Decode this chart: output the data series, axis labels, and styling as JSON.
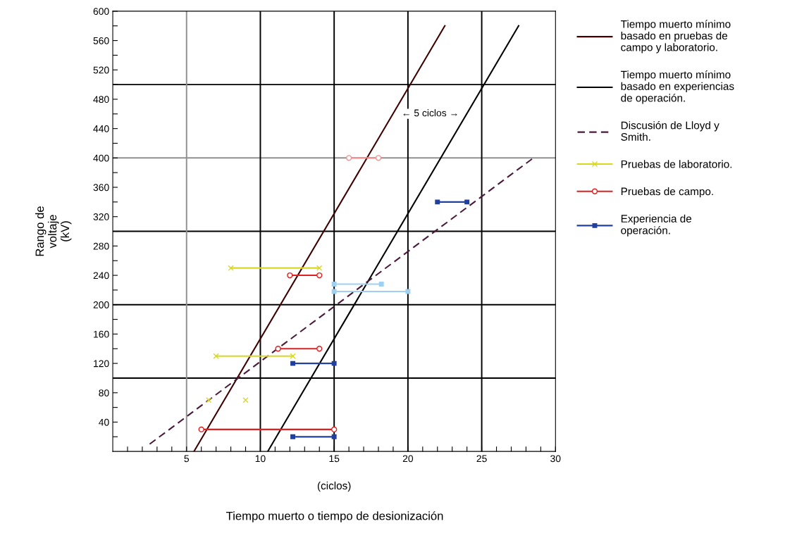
{
  "chart_data": {
    "type": "line",
    "xlabel": "(ciclos)",
    "ylabel": "Rango de\nvoltaje\n(kV)",
    "annotations": [
      "Tiempo muerto o tiempo de desionización",
      "← 5 ciclos →"
    ],
    "xlim": [
      0,
      30
    ],
    "ylim": [
      0,
      600
    ],
    "xticks": [
      {
        "value": 1,
        "label": null
      },
      {
        "value": 2,
        "label": null
      },
      {
        "value": 3,
        "label": null
      },
      {
        "value": 4,
        "label": null
      },
      5,
      {
        "value": 6,
        "label": null
      },
      {
        "value": 7,
        "label": null
      },
      {
        "value": 8,
        "label": null
      },
      {
        "value": 9,
        "label": null
      },
      10,
      {
        "value": 11,
        "label": null
      },
      {
        "value": 12,
        "label": null
      },
      {
        "value": 13,
        "label": null
      },
      {
        "value": 14,
        "label": null
      },
      15,
      {
        "value": 16,
        "label": null
      },
      {
        "value": 17,
        "label": null
      },
      {
        "value": 18,
        "label": null
      },
      {
        "value": 19,
        "label": null
      },
      20,
      {
        "value": 21,
        "label": null
      },
      {
        "value": 22,
        "label": null
      },
      {
        "value": 23,
        "label": null
      },
      {
        "value": 24,
        "label": null
      },
      25,
      {
        "value": 26,
        "label": null
      },
      {
        "value": 27,
        "label": null
      },
      {
        "value": 28,
        "label": null
      },
      {
        "value": 29,
        "label": null
      },
      30
    ],
    "yticks": [
      {
        "value": 20,
        "label": null
      },
      40,
      {
        "value": 60,
        "label": null
      },
      80,
      {
        "value": 100,
        "label": null
      },
      120,
      {
        "value": 140,
        "label": null
      },
      160,
      {
        "value": 180,
        "label": null
      },
      200,
      {
        "value": 220,
        "label": null
      },
      240,
      {
        "value": 260,
        "label": null
      },
      280,
      {
        "value": 300,
        "label": null
      },
      320,
      {
        "value": 340,
        "label": null
      },
      360,
      {
        "value": 380,
        "label": null
      },
      400,
      {
        "value": 420,
        "label": null
      },
      440,
      {
        "value": 460,
        "label": null
      },
      480,
      {
        "value": 500,
        "label": null
      },
      520,
      {
        "value": 540,
        "label": null
      },
      560,
      {
        "value": 580,
        "label": null
      },
      600
    ],
    "grid": false,
    "legend": "right",
    "ref_lines": [
      {
        "axis": "y",
        "value": 100,
        "color": "#000000"
      },
      {
        "axis": "y",
        "value": 200,
        "color": "#000000"
      },
      {
        "axis": "y",
        "value": 300,
        "color": "#000000"
      },
      {
        "axis": "y",
        "value": 400,
        "color": "#909090"
      },
      {
        "axis": "y",
        "value": 500,
        "color": "#000000"
      },
      {
        "axis": "x",
        "value": 5,
        "color": "#909090"
      },
      {
        "axis": "x",
        "value": 10,
        "color": "#000000"
      },
      {
        "axis": "x",
        "value": 15,
        "color": "#000000"
      },
      {
        "axis": "x",
        "value": 20,
        "color": "#000000"
      },
      {
        "axis": "x",
        "value": 25,
        "color": "#000000"
      }
    ],
    "series": [
      {
        "name": "Tiempo muerto mínimo\nbasado en pruebas de\ncampo y laboratorio.",
        "color": "#400000",
        "x": [
          5.5,
          22.5
        ],
        "values": [
          0,
          580
        ],
        "marker": "none",
        "line_style": "solid"
      },
      {
        "name": "Tiempo muerto mínimo\nbasado en experiencias\nde operación.",
        "color": "#000000",
        "x": [
          10.5,
          27.5
        ],
        "values": [
          0,
          580
        ],
        "marker": "none",
        "line_style": "solid"
      },
      {
        "name": "Discusión de Lloyd y\nSmith.",
        "color": "#4a1a3a",
        "x": [
          2.5,
          28.5
        ],
        "values": [
          10,
          400
        ],
        "marker": "none",
        "line_style": "dashed"
      },
      {
        "name": "Pruebas de laboratorio.",
        "color": "#d8d820",
        "x": [
          8,
          14
        ],
        "values": [
          250,
          250
        ],
        "marker": "cross",
        "line_style": "solid"
      },
      {
        "color": "#d8d820",
        "x": [
          7,
          12.2
        ],
        "values": [
          130,
          130
        ],
        "marker": "cross",
        "line_style": "solid"
      },
      {
        "type": "scatter",
        "color": "#d8d820",
        "x": [
          6.5,
          9
        ],
        "values": [
          70,
          70
        ],
        "marker": "cross"
      },
      {
        "name": "Pruebas de campo.",
        "color": "#e02020",
        "x": [
          6,
          15
        ],
        "values": [
          30,
          30
        ],
        "marker": "circle",
        "line_style": "solid"
      },
      {
        "color": "#e02020",
        "x": [
          11.2,
          14
        ],
        "values": [
          140,
          140
        ],
        "marker": "circle",
        "line_style": "solid"
      },
      {
        "color": "#e02020",
        "x": [
          12,
          14
        ],
        "values": [
          240,
          240
        ],
        "marker": "circle",
        "line_style": "solid"
      },
      {
        "color": "#f09090",
        "x": [
          16,
          18
        ],
        "values": [
          400,
          400
        ],
        "marker": "circle",
        "line_style": "solid"
      },
      {
        "name": "Experiencia de\noperación.",
        "color": "#2040a0",
        "x": [
          12.2,
          15
        ],
        "values": [
          20,
          20
        ],
        "marker": "square",
        "line_style": "solid"
      },
      {
        "color": "#2040a0",
        "x": [
          12.2,
          15
        ],
        "values": [
          120,
          120
        ],
        "marker": "square",
        "line_style": "solid"
      },
      {
        "color": "#2040a0",
        "x": [
          22,
          24
        ],
        "values": [
          340,
          340
        ],
        "marker": "square",
        "line_style": "solid"
      },
      {
        "color": "#a0d0f0",
        "x": [
          15,
          18.2
        ],
        "values": [
          228,
          228
        ],
        "marker": "square",
        "line_style": "solid"
      },
      {
        "color": "#a0d0f0",
        "x": [
          15,
          20
        ],
        "values": [
          218,
          218
        ],
        "marker": "square",
        "line_style": "solid"
      }
    ]
  }
}
